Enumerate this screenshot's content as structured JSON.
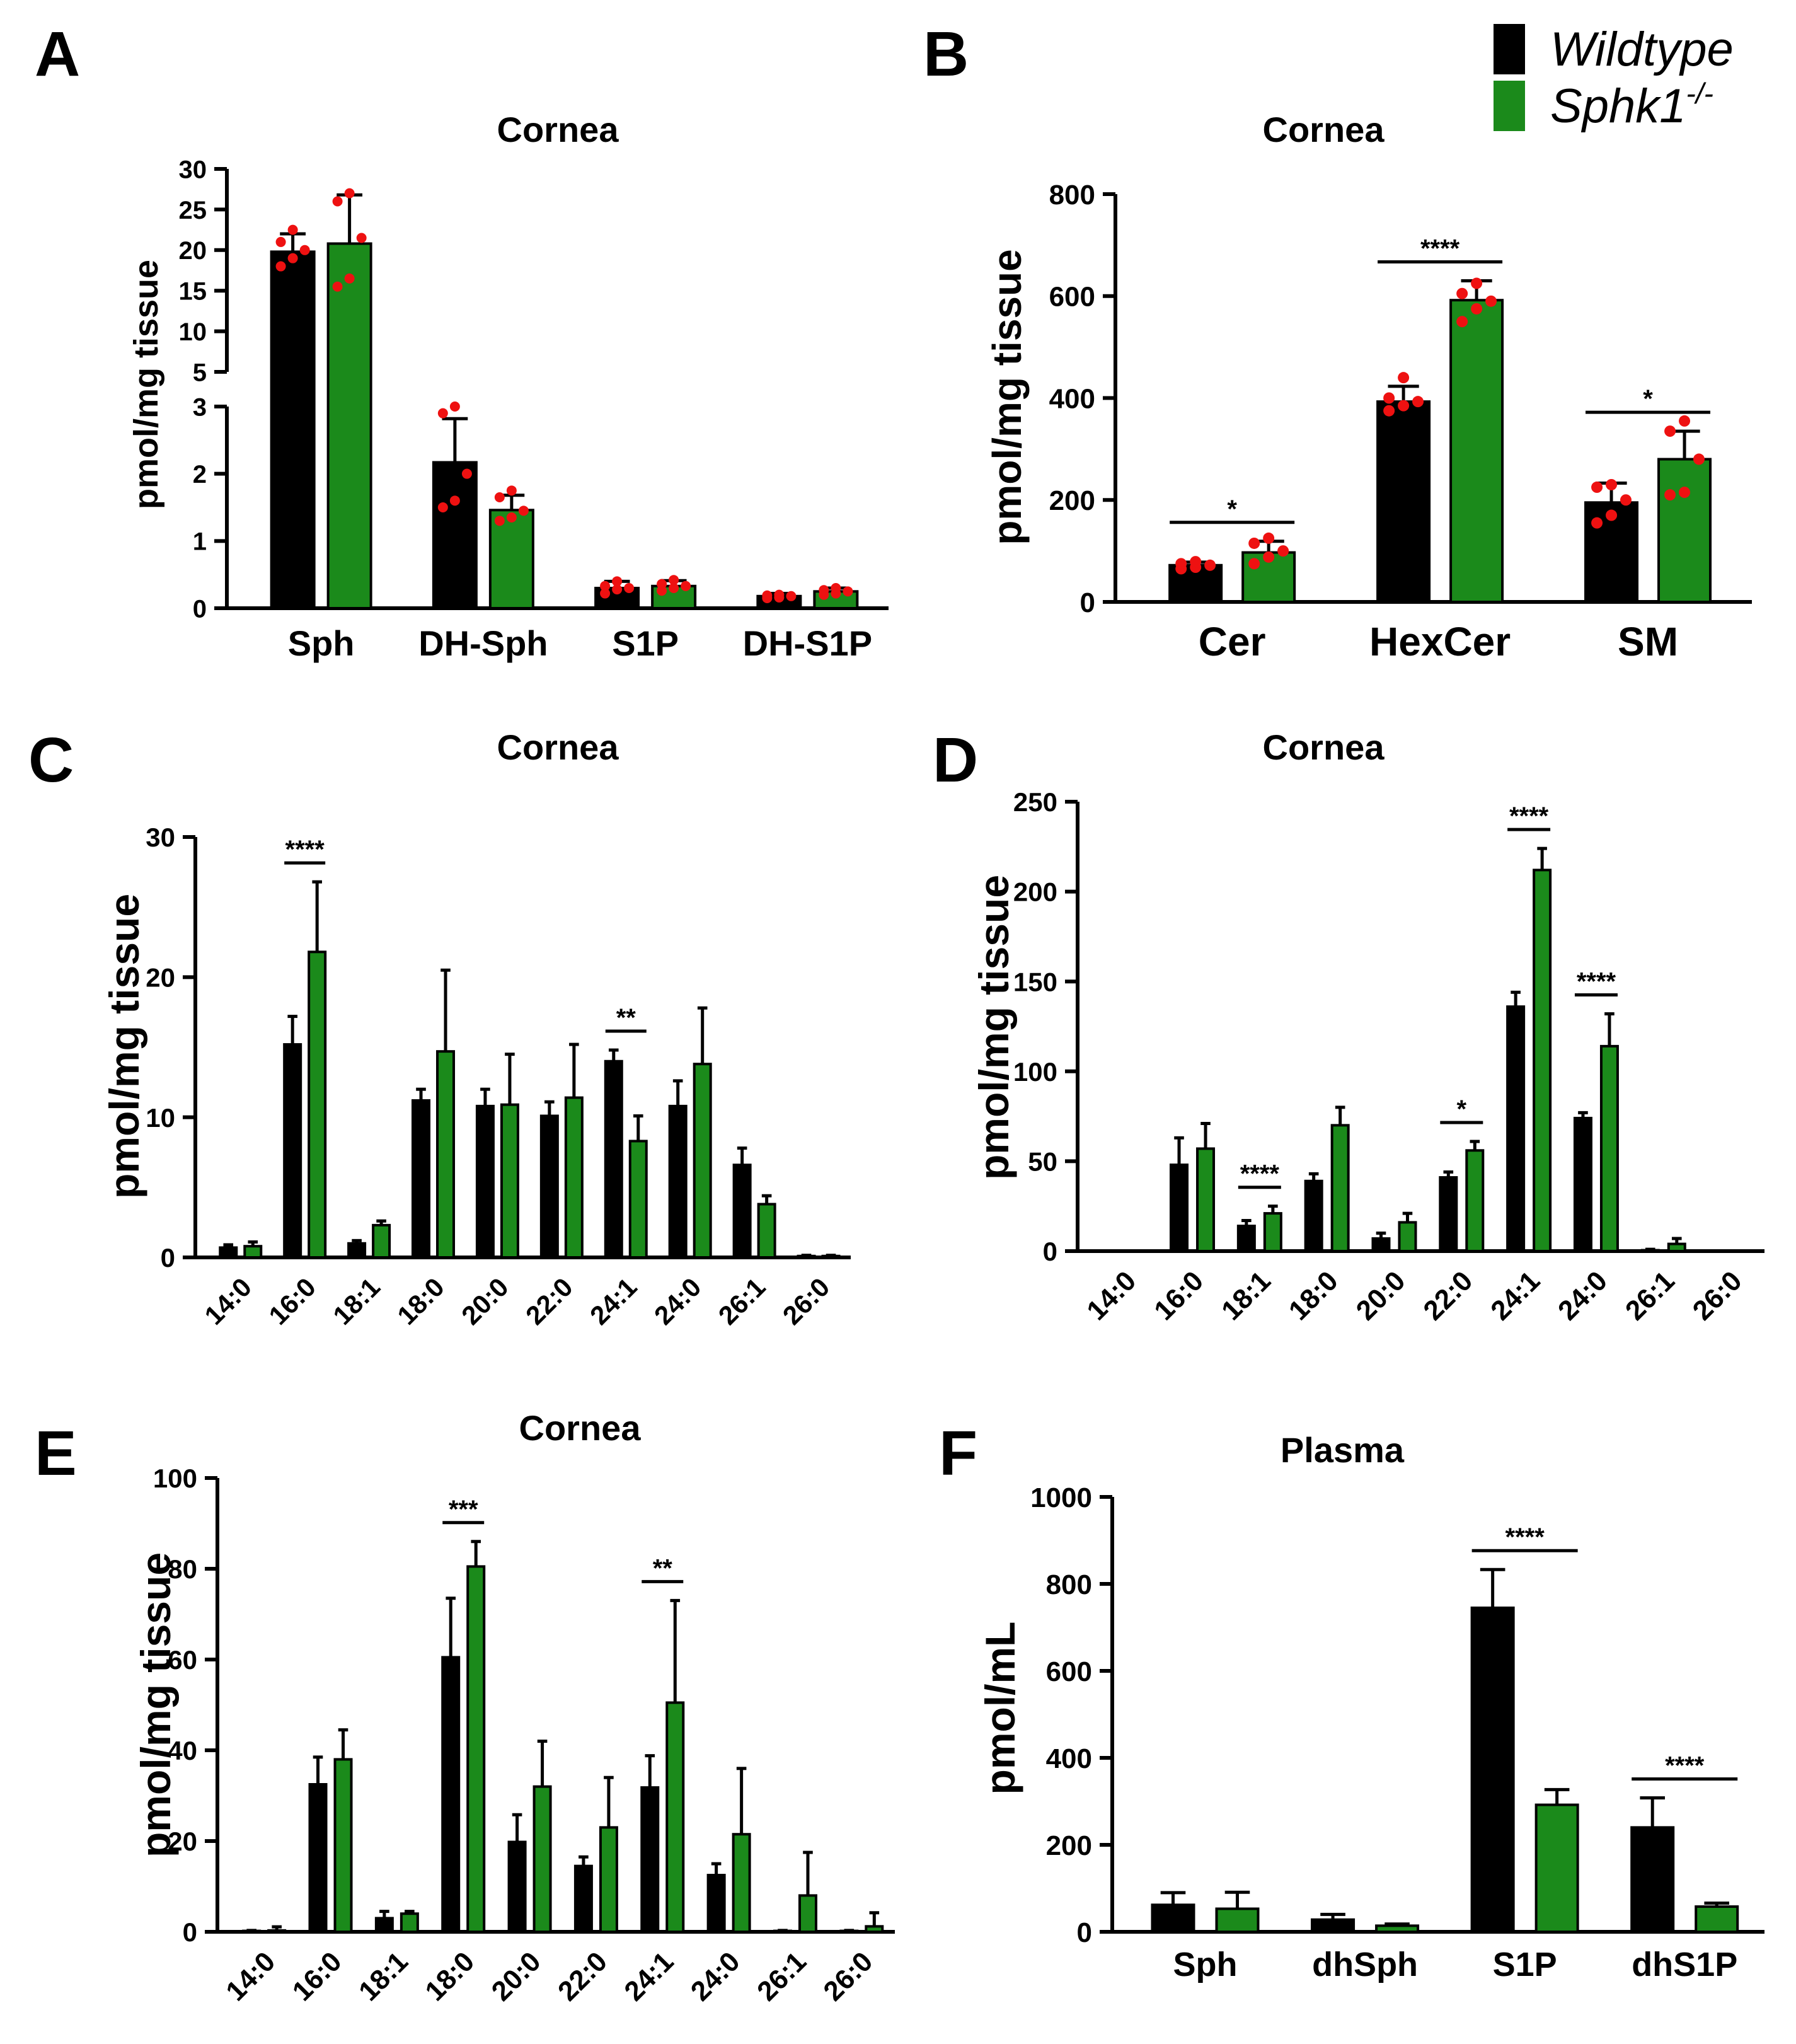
{
  "legend": {
    "entries": [
      {
        "label": "Wildtype",
        "color": "#000000"
      },
      {
        "label": "Sphk1",
        "superscript": "-/-",
        "color": "#1b8a1b"
      }
    ]
  },
  "chart_data": [
    {
      "panel": "A",
      "type": "bar",
      "title": "Cornea",
      "ylabel": "pmol/mg tissue",
      "xlabel": "",
      "categories": [
        "Sph",
        "DH-Sph",
        "S1P",
        "DH-S1P"
      ],
      "broken_axis": {
        "lower_range": [
          0,
          3
        ],
        "upper_range": [
          5,
          30
        ]
      },
      "yticks_lower": [
        0,
        1,
        2,
        3
      ],
      "yticks_upper": [
        5,
        10,
        15,
        20,
        25,
        30
      ],
      "series": [
        {
          "name": "Wildtype",
          "values": [
            19.8,
            2.17,
            0.3,
            0.18
          ],
          "errors": [
            2.2,
            0.65,
            0.1,
            0.04
          ],
          "points": [
            [
              18,
              19,
              20,
              21,
              22.5
            ],
            [
              1.5,
              1.6,
              2.0,
              2.9,
              3.0
            ],
            [
              0.22,
              0.28,
              0.3,
              0.33,
              0.4
            ],
            [
              0.15,
              0.16,
              0.18,
              0.19,
              0.2
            ]
          ]
        },
        {
          "name": "Sphk1-/-",
          "values": [
            20.8,
            1.46,
            0.33,
            0.25
          ],
          "errors": [
            6.0,
            0.22,
            0.08,
            0.05
          ],
          "points": [
            [
              15.5,
              16.5,
              21.5,
              26,
              27
            ],
            [
              1.3,
              1.35,
              1.45,
              1.65,
              1.75
            ],
            [
              0.26,
              0.3,
              0.33,
              0.36,
              0.42
            ],
            [
              0.2,
              0.22,
              0.25,
              0.27,
              0.3
            ]
          ]
        }
      ]
    },
    {
      "panel": "B",
      "type": "bar",
      "title": "Cornea",
      "ylabel": "pmol/mg tissue",
      "xlabel": "",
      "categories": [
        "Cer",
        "HexCer",
        "SM"
      ],
      "ylim": [
        0,
        800
      ],
      "yticks": [
        0,
        200,
        400,
        600,
        800
      ],
      "series": [
        {
          "name": "Wildtype",
          "values": [
            72,
            393,
            195
          ],
          "errors": [
            6,
            30,
            38
          ],
          "points": [
            [
              65,
              68,
              72,
              75,
              79
            ],
            [
              375,
              385,
              393,
              400,
              440
            ],
            [
              155,
              170,
              200,
              225,
              230
            ]
          ]
        },
        {
          "name": "Sphk1-/-",
          "values": [
            97,
            592,
            280
          ],
          "errors": [
            22,
            38,
            55
          ],
          "points": [
            [
              75,
              88,
              100,
              115,
              125
            ],
            [
              550,
              575,
              590,
              605,
              625
            ],
            [
              210,
              215,
              280,
              335,
              355
            ]
          ]
        }
      ],
      "significance": [
        {
          "from": 0,
          "to": 0,
          "label": "*"
        },
        {
          "from": 1,
          "to": 1,
          "label": "****"
        },
        {
          "from": 2,
          "to": 2,
          "label": "*"
        }
      ]
    },
    {
      "panel": "C",
      "type": "bar",
      "title": "Cornea",
      "ylabel": "pmol/mg tissue",
      "xlabel": "",
      "categories": [
        "14:0",
        "16:0",
        "18:1",
        "18:0",
        "20:0",
        "22:0",
        "24:1",
        "24:0",
        "26:1",
        "26:0"
      ],
      "ylim": [
        0,
        30
      ],
      "yticks": [
        0,
        10,
        20,
        30
      ],
      "series": [
        {
          "name": "Wildtype",
          "values": [
            0.7,
            15.2,
            1.0,
            11.2,
            10.8,
            10.1,
            14.0,
            10.8,
            6.6,
            0.1
          ],
          "errors": [
            0.2,
            2.0,
            0.2,
            0.8,
            1.2,
            1.0,
            0.8,
            1.8,
            1.2,
            0.05
          ]
        },
        {
          "name": "Sphk1-/-",
          "values": [
            0.8,
            21.8,
            2.3,
            14.7,
            10.9,
            11.4,
            8.3,
            13.8,
            3.8,
            0.1
          ],
          "errors": [
            0.3,
            5.0,
            0.3,
            5.8,
            3.6,
            3.8,
            1.8,
            4.0,
            0.6,
            0.05
          ]
        }
      ],
      "significance": [
        {
          "from": 1,
          "to": 1,
          "label": "****"
        },
        {
          "from": 6,
          "to": 6,
          "label": "**"
        }
      ]
    },
    {
      "panel": "D",
      "type": "bar",
      "title": "Cornea",
      "ylabel": "pmol/mg tissue",
      "xlabel": "",
      "categories": [
        "14:0",
        "16:0",
        "18:1",
        "18:0",
        "20:0",
        "22:0",
        "24:1",
        "24:0",
        "26:1",
        "26:0"
      ],
      "ylim": [
        0,
        250
      ],
      "yticks": [
        0,
        50,
        100,
        150,
        200,
        250
      ],
      "series": [
        {
          "name": "Wildtype",
          "values": [
            0,
            48,
            14,
            39,
            7,
            41,
            136,
            74,
            0.5,
            0
          ],
          "errors": [
            0,
            15,
            3,
            4,
            3,
            3,
            8,
            3,
            0.5,
            0
          ]
        },
        {
          "name": "Sphk1-/-",
          "values": [
            0,
            57,
            21,
            70,
            16,
            56,
            212,
            114,
            4,
            0
          ],
          "errors": [
            0,
            14,
            4,
            10,
            5,
            5,
            12,
            18,
            3,
            0
          ]
        }
      ],
      "significance": [
        {
          "from": 2,
          "to": 2,
          "label": "****"
        },
        {
          "from": 5,
          "to": 5,
          "label": "*"
        },
        {
          "from": 6,
          "to": 6,
          "label": "****"
        },
        {
          "from": 7,
          "to": 7,
          "label": "****"
        }
      ]
    },
    {
      "panel": "E",
      "type": "bar",
      "title": "Cornea",
      "ylabel": "pmol/mg tissue",
      "xlabel": "",
      "categories": [
        "14:0",
        "16:0",
        "18:1",
        "18:0",
        "20:0",
        "22:0",
        "24:1",
        "24:0",
        "26:1",
        "26:0"
      ],
      "ylim": [
        0,
        100
      ],
      "yticks": [
        0,
        20,
        40,
        60,
        80,
        100
      ],
      "series": [
        {
          "name": "Wildtype",
          "values": [
            0.2,
            32.5,
            3.0,
            60.5,
            19.8,
            14.5,
            31.8,
            12.5,
            0.2,
            0.2
          ],
          "errors": [
            0.1,
            6.0,
            1.5,
            13.0,
            6.0,
            2.0,
            7.0,
            2.5,
            0.1,
            0.1
          ]
        },
        {
          "name": "Sphk1-/-",
          "values": [
            0.3,
            38.0,
            4.0,
            80.5,
            32.0,
            23.0,
            50.5,
            21.5,
            8.0,
            1.2
          ],
          "errors": [
            0.8,
            6.5,
            0.5,
            5.5,
            10.0,
            11.0,
            22.5,
            14.5,
            9.5,
            3.0
          ]
        }
      ],
      "significance": [
        {
          "from": 3,
          "to": 3,
          "label": "***"
        },
        {
          "from": 6,
          "to": 6,
          "label": "**"
        }
      ]
    },
    {
      "panel": "F",
      "type": "bar",
      "title": "Plasma",
      "ylabel": "pmol/mL",
      "xlabel": "",
      "categories": [
        "Sph",
        "dhSph",
        "S1P",
        "dhS1P"
      ],
      "ylim": [
        0,
        1000
      ],
      "yticks": [
        0,
        200,
        400,
        600,
        800,
        1000
      ],
      "series": [
        {
          "name": "Wildtype",
          "values": [
            62,
            28,
            745,
            240
          ],
          "errors": [
            28,
            12,
            88,
            68
          ]
        },
        {
          "name": "Sphk1-/-",
          "values": [
            53,
            14,
            292,
            58
          ],
          "errors": [
            38,
            4,
            35,
            8
          ]
        }
      ],
      "significance": [
        {
          "from": 2,
          "to": 2,
          "label": "****"
        },
        {
          "from": 3,
          "to": 3,
          "label": "****"
        }
      ]
    }
  ]
}
